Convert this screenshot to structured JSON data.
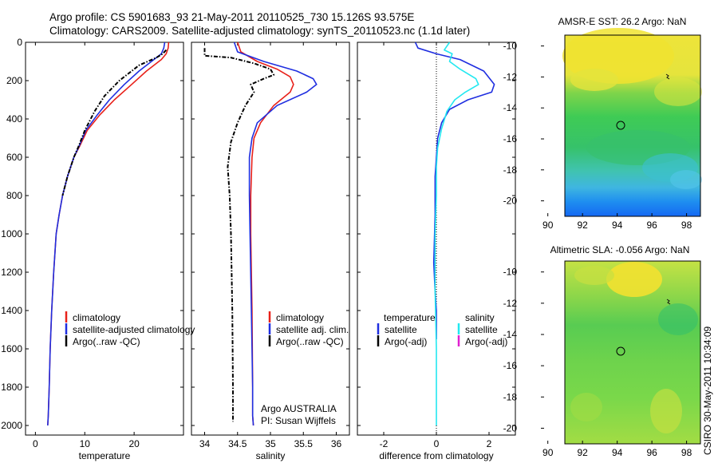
{
  "header": {
    "line1": "Argo profile: CS 5901683_93 21-May-2011 20110525_730 15.126S 93.575E",
    "line2": "Climatology: CARS2009. Satellite-adjusted climatology: synTS_20110523.nc (1.1d later)"
  },
  "side_text": "CSIRO 30-May-2011 10:34:09",
  "colors": {
    "climatology": "#e8211a",
    "satellite": "#1f2ee0",
    "argo": "#000000",
    "sat_sal": "#22e8f0",
    "argo_sal_adj": "#e020d0"
  },
  "chart_data": [
    {
      "type": "line",
      "id": "temperature",
      "xlabel": "temperature",
      "ylabel": "",
      "xlim": [
        -2,
        30
      ],
      "ylim": [
        2050,
        0
      ],
      "xticks": [
        0,
        10,
        20
      ],
      "yticks": [
        0,
        200,
        400,
        600,
        800,
        1000,
        1200,
        1400,
        1600,
        1800,
        2000
      ],
      "legend": [
        "climatology",
        "satellite-adjusted climatology",
        "Argo(..raw -QC)"
      ],
      "series": [
        {
          "name": "climatology",
          "color": "#e8211a",
          "x": [
            27.0,
            26.9,
            26.5,
            25.5,
            22.5,
            19.5,
            16.0,
            13.0,
            10.5,
            9.0,
            7.8,
            6.5,
            5.5,
            4.8,
            4.2,
            3.7,
            3.3,
            3.0,
            2.8,
            2.6,
            2.5
          ],
          "y": [
            0,
            30,
            60,
            90,
            150,
            220,
            300,
            380,
            460,
            540,
            600,
            700,
            800,
            900,
            1000,
            1200,
            1400,
            1600,
            1800,
            1950,
            2000
          ]
        },
        {
          "name": "satellite-adjusted climatology",
          "color": "#1f2ee0",
          "x": [
            26.2,
            26.0,
            25.5,
            24.0,
            21.0,
            18.0,
            15.0,
            12.5,
            10.2,
            8.9,
            7.8,
            6.5,
            5.5,
            4.8,
            4.2,
            3.7,
            3.3,
            3.0,
            2.8,
            2.6,
            2.5
          ],
          "y": [
            0,
            30,
            60,
            90,
            150,
            220,
            300,
            380,
            460,
            540,
            600,
            700,
            800,
            900,
            1000,
            1200,
            1400,
            1600,
            1800,
            1950,
            2000
          ]
        },
        {
          "name": "Argo(..raw -QC)",
          "color": "#000000",
          "style": "dashdot",
          "x": [
            26.5,
            25.8,
            24.5,
            21.0,
            17.0,
            14.0,
            12.0,
            10.0,
            8.8,
            7.8,
            6.5,
            5.5
          ],
          "y": [
            40,
            60,
            80,
            120,
            200,
            280,
            360,
            460,
            540,
            600,
            700,
            800
          ]
        }
      ]
    },
    {
      "type": "line",
      "id": "salinity",
      "xlabel": "salinity",
      "ylabel": "",
      "xlim": [
        33.8,
        36.2
      ],
      "ylim": [
        2050,
        0
      ],
      "xticks": [
        34,
        34.5,
        35,
        35.5,
        36
      ],
      "xticklabels": [
        "34",
        "34.5",
        "35",
        "35.5",
        "36"
      ],
      "legend": [
        "climatology",
        "satellite adj. clim.",
        "Argo(..raw -QC)"
      ],
      "annotations": [
        "Argo AUSTRALIA",
        "PI: Susan Wijffels"
      ],
      "series": [
        {
          "name": "climatology",
          "color": "#e8211a",
          "x": [
            34.5,
            34.55,
            34.8,
            35.1,
            35.3,
            35.35,
            35.3,
            35.05,
            34.85,
            34.75,
            34.72,
            34.7,
            34.7,
            34.72,
            34.73,
            34.73,
            34.74
          ],
          "y": [
            0,
            50,
            100,
            140,
            180,
            220,
            260,
            330,
            420,
            500,
            600,
            800,
            1000,
            1400,
            1800,
            1950,
            2000
          ]
        },
        {
          "name": "satellite adj. clim.",
          "color": "#1f2ee0",
          "x": [
            34.45,
            34.5,
            34.9,
            35.4,
            35.65,
            35.7,
            35.55,
            35.1,
            34.8,
            34.72,
            34.68,
            34.68,
            34.69,
            34.71,
            34.73,
            34.73,
            34.74
          ],
          "y": [
            0,
            50,
            100,
            150,
            190,
            220,
            260,
            330,
            420,
            500,
            600,
            800,
            1000,
            1400,
            1800,
            1950,
            2000
          ]
        },
        {
          "name": "Argo(..raw -QC)",
          "color": "#000000",
          "style": "dashdot",
          "x": [
            34.0,
            34.0,
            34.4,
            34.75,
            35.0,
            35.05,
            34.9,
            34.7,
            34.75,
            34.62,
            34.5,
            34.4,
            34.35,
            34.38,
            34.4,
            34.42,
            34.43,
            34.43
          ],
          "y": [
            30,
            70,
            80,
            110,
            140,
            170,
            190,
            220,
            260,
            330,
            420,
            520,
            650,
            800,
            1000,
            1400,
            1800,
            1980
          ]
        }
      ]
    },
    {
      "type": "line",
      "id": "difference",
      "xlabel": "difference from climatology",
      "ylabel": "",
      "xlim": [
        -3,
        3
      ],
      "ylim": [
        2050,
        0
      ],
      "xticks": [
        -2,
        0,
        2
      ],
      "legend_titles": [
        "temperature",
        "salinity"
      ],
      "legend": [
        "satellite",
        "Argo(-adj)",
        "satellite",
        "Argo(-adj)"
      ],
      "series": [
        {
          "name": "temperature satellite",
          "color": "#1f2ee0",
          "x": [
            -0.8,
            -0.7,
            0.0,
            0.9,
            1.8,
            2.2,
            2.1,
            1.2,
            0.5,
            0.2,
            0.05,
            0.0,
            -0.05,
            -0.05,
            -0.1,
            -0.05,
            0.0,
            0.0
          ],
          "y": [
            0,
            30,
            60,
            90,
            150,
            220,
            260,
            300,
            350,
            420,
            500,
            600,
            700,
            900,
            1150,
            1300,
            1400,
            1550
          ]
        },
        {
          "name": "salinity satellite",
          "color": "#22e8f0",
          "x": [
            0.5,
            0.3,
            0.6,
            0.5,
            0.9,
            1.5,
            1.6,
            1.1,
            0.7,
            0.4,
            0.2,
            0.05,
            0.0,
            0.0,
            -0.05,
            -0.05,
            0.0,
            0.0,
            0.0
          ],
          "y": [
            0,
            40,
            60,
            100,
            140,
            190,
            220,
            260,
            300,
            360,
            450,
            550,
            650,
            800,
            1000,
            1300,
            1600,
            1900,
            2000
          ]
        }
      ]
    }
  ],
  "maps": [
    {
      "id": "sst",
      "title": "AMSR-E SST: 26.2 Argo: NaN",
      "xticks": [
        90,
        92,
        94,
        96,
        98
      ],
      "yticks": [
        -10,
        -12,
        -14,
        -16,
        -18,
        -20
      ]
    },
    {
      "id": "sla",
      "title": "Altimetric SLA: -0.056 Argo: NaN",
      "xticks": [
        90,
        92,
        94,
        96,
        98
      ],
      "yticks": [
        -10,
        -12,
        -14,
        -16,
        -18,
        -20
      ]
    }
  ]
}
